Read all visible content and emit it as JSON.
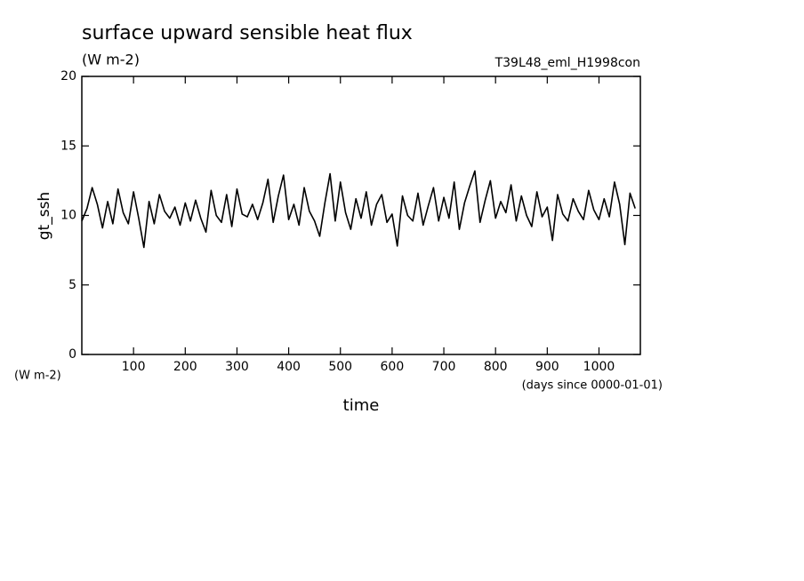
{
  "chart_data": {
    "type": "line",
    "title": "surface upward sensible heat flux",
    "units": "(W m-2)",
    "experiment": "T39L48_eml_H1998con",
    "ylabel": "gt_ssh",
    "xlabel": "time",
    "xunits": "(days since 0000-01-01)",
    "xlim": [
      0,
      1080
    ],
    "xticks": [
      100,
      200,
      300,
      400,
      500,
      600,
      700,
      800,
      900,
      1000
    ],
    "ylim": [
      0,
      20
    ],
    "yticks": [
      0,
      5,
      10,
      15,
      20
    ],
    "grid": false,
    "x": [
      0,
      10,
      20,
      30,
      40,
      50,
      60,
      70,
      80,
      90,
      100,
      110,
      120,
      130,
      140,
      150,
      160,
      170,
      180,
      190,
      200,
      210,
      220,
      230,
      240,
      250,
      260,
      270,
      280,
      290,
      300,
      310,
      320,
      330,
      340,
      350,
      360,
      370,
      380,
      390,
      400,
      410,
      420,
      430,
      440,
      450,
      460,
      470,
      480,
      490,
      500,
      510,
      520,
      530,
      540,
      550,
      560,
      570,
      580,
      590,
      600,
      610,
      620,
      630,
      640,
      650,
      660,
      670,
      680,
      690,
      700,
      710,
      720,
      730,
      740,
      750,
      760,
      770,
      780,
      790,
      800,
      810,
      820,
      830,
      840,
      850,
      860,
      870,
      880,
      890,
      900,
      910,
      920,
      930,
      940,
      950,
      960,
      970,
      980,
      990,
      1000,
      1010,
      1020,
      1030,
      1040,
      1050,
      1060,
      1070
    ],
    "series": [
      {
        "color": "#000000",
        "values": [
          9.6,
          10.5,
          12.0,
          10.8,
          9.1,
          11.0,
          9.4,
          11.9,
          10.2,
          9.4,
          11.7,
          9.8,
          7.7,
          11.0,
          9.4,
          11.5,
          10.3,
          9.8,
          10.6,
          9.3,
          10.9,
          9.6,
          11.1,
          9.8,
          8.8,
          11.8,
          10.0,
          9.5,
          11.5,
          9.2,
          11.9,
          10.1,
          9.9,
          10.8,
          9.7,
          10.9,
          12.6,
          9.5,
          11.4,
          12.9,
          9.7,
          10.8,
          9.3,
          12.0,
          10.3,
          9.6,
          8.5,
          10.9,
          13.0,
          9.6,
          12.4,
          10.2,
          9.0,
          11.2,
          9.8,
          11.7,
          9.3,
          10.8,
          11.5,
          9.5,
          10.1,
          7.8,
          11.4,
          10.0,
          9.6,
          11.6,
          9.3,
          10.7,
          12.0,
          9.6,
          11.3,
          9.8,
          12.4,
          9.0,
          10.9,
          12.1,
          13.2,
          9.5,
          11.1,
          12.5,
          9.8,
          11.0,
          10.2,
          12.2,
          9.6,
          11.4,
          10.0,
          9.2,
          11.7,
          9.9,
          10.6,
          8.2,
          11.5,
          10.1,
          9.6,
          11.2,
          10.3,
          9.7,
          11.8,
          10.4,
          9.7,
          11.2,
          9.9,
          12.4,
          10.8,
          7.9,
          11.6,
          10.5
        ]
      }
    ]
  }
}
